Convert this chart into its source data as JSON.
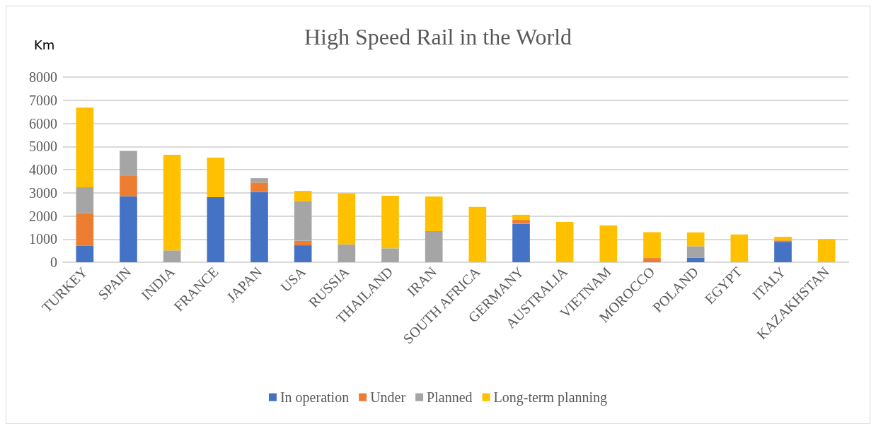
{
  "chart_data": {
    "type": "bar",
    "title": "High Speed Rail in the World",
    "ylabel": "Km",
    "stacked": true,
    "categories": [
      "TURKEY",
      "SPAIN",
      "INDIA",
      "FRANCE",
      "JAPAN",
      "USA",
      "RUSSIA",
      "THAILAND",
      "IRAN",
      "SOUTH AFRICA",
      "GERMANY",
      "AUSTRALIA",
      "VIETNAM",
      "MOROCCO",
      "POLAND",
      "EGYPT",
      "ITALY",
      "KAZAKHSTAN"
    ],
    "series": [
      {
        "name": "In operation",
        "color": "#4472c4",
        "values": [
          720,
          2850,
          0,
          2810,
          3040,
          730,
          0,
          0,
          0,
          0,
          1660,
          0,
          0,
          0,
          200,
          0,
          880,
          0
        ]
      },
      {
        "name": "Under",
        "color": "#ed7d31",
        "values": [
          1400,
          900,
          0,
          0,
          400,
          190,
          0,
          0,
          0,
          0,
          170,
          0,
          0,
          180,
          0,
          0,
          60,
          0
        ]
      },
      {
        "name": "Planned",
        "color": "#a5a5a5",
        "values": [
          1120,
          1060,
          510,
          0,
          190,
          1710,
          770,
          600,
          1340,
          0,
          0,
          0,
          0,
          0,
          490,
          0,
          0,
          0
        ]
      },
      {
        "name": "Long-term planning",
        "color": "#ffc000",
        "values": [
          3440,
          0,
          4130,
          1710,
          0,
          450,
          2210,
          2270,
          1500,
          2390,
          220,
          1740,
          1590,
          1120,
          600,
          1200,
          160,
          1000
        ]
      }
    ],
    "ylim": [
      0,
      8000
    ],
    "yticks": [
      0,
      1000,
      2000,
      3000,
      4000,
      5000,
      6000,
      7000,
      8000
    ],
    "grid": "y",
    "legend": "bottom"
  }
}
